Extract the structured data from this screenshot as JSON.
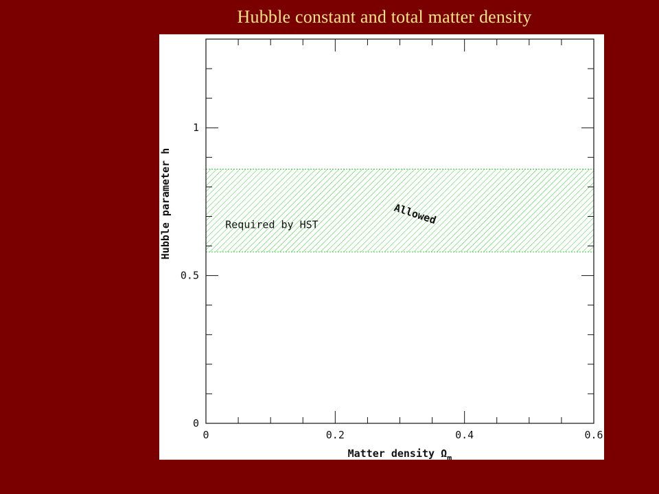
{
  "slide": {
    "title": "Hubble constant and total matter density"
  },
  "chart_data": {
    "type": "area",
    "xlabel": "Matter density Ω",
    "xlabel_subscript": "m",
    "ylabel": "Hubble parameter h",
    "xlim": [
      0,
      0.6
    ],
    "ylim": [
      0,
      1.3
    ],
    "x_ticks": [
      0,
      0.2,
      0.4,
      0.6
    ],
    "x_tick_labels": [
      "0",
      "0.2",
      "0.4",
      "0.6"
    ],
    "y_ticks": [
      0,
      0.5,
      1
    ],
    "y_tick_labels": [
      "0",
      "0.5",
      "1"
    ],
    "x_minor_step": 0.05,
    "y_minor_step": 0.1,
    "bands": [
      {
        "y_min": 0.58,
        "y_max": 0.86,
        "x_min": 0,
        "x_max": 0.6,
        "fill": "hatched",
        "color": "#33cc33"
      }
    ],
    "annotations": [
      {
        "text": "Allowed",
        "x": 0.29,
        "y": 0.72,
        "rotation": 18,
        "bold": true
      },
      {
        "text": "Required by HST",
        "x": 0.03,
        "y": 0.66,
        "rotation": 0,
        "bold": false
      }
    ],
    "grid": false
  }
}
